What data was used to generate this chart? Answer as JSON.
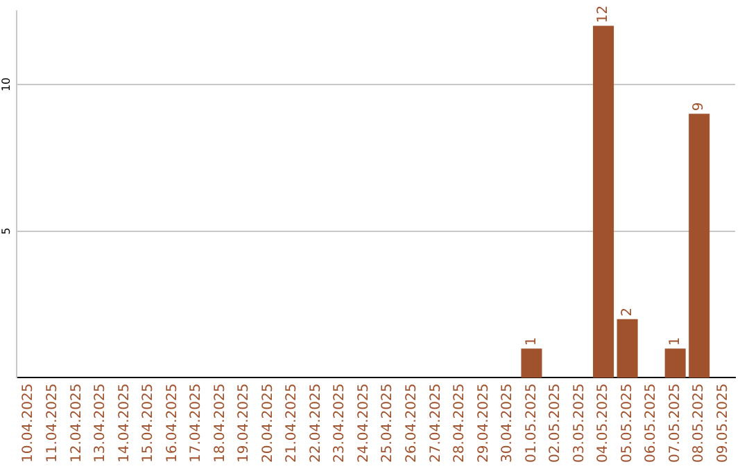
{
  "chart_data": {
    "type": "bar",
    "categories": [
      "10.04.2025",
      "11.04.2025",
      "12.04.2025",
      "13.04.2025",
      "14.04.2025",
      "15.04.2025",
      "16.04.2025",
      "17.04.2025",
      "18.04.2025",
      "19.04.2025",
      "20.04.2025",
      "21.04.2025",
      "22.04.2025",
      "23.04.2025",
      "24.04.2025",
      "25.04.2025",
      "26.04.2025",
      "27.04.2025",
      "28.04.2025",
      "29.04.2025",
      "30.04.2025",
      "01.05.2025",
      "02.05.2025",
      "03.05.2025",
      "04.05.2025",
      "05.05.2025",
      "06.05.2025",
      "07.05.2025",
      "08.05.2025",
      "09.05.2025"
    ],
    "values": [
      0,
      0,
      0,
      0,
      0,
      0,
      0,
      0,
      0,
      0,
      0,
      0,
      0,
      0,
      0,
      0,
      0,
      0,
      0,
      0,
      0,
      1,
      0,
      0,
      12,
      2,
      0,
      1,
      9,
      0
    ],
    "value_labels": [
      null,
      null,
      null,
      null,
      null,
      null,
      null,
      null,
      null,
      null,
      null,
      null,
      null,
      null,
      null,
      null,
      null,
      null,
      null,
      null,
      null,
      "1",
      null,
      null,
      "12",
      "2",
      null,
      "1",
      "9",
      null
    ],
    "color": "#a0522d",
    "ylim": [
      0,
      12.5
    ],
    "yticks": [
      5,
      10
    ],
    "grid": "y",
    "legend": false
  }
}
